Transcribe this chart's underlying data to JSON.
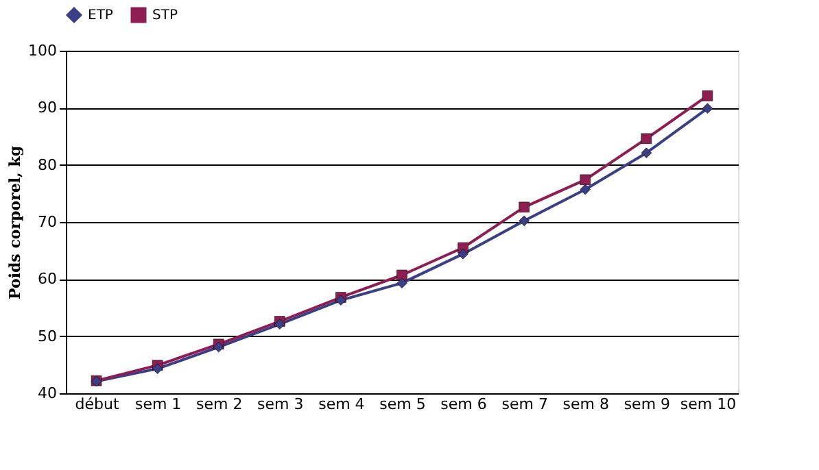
{
  "chart_data": {
    "type": "line",
    "ylabel": "Poids corporel, kg",
    "categories": [
      "début",
      "sem 1",
      "sem 2",
      "sem 3",
      "sem 4",
      "sem 5",
      "sem 6",
      "sem 7",
      "sem 8",
      "sem 9",
      "sem 10"
    ],
    "series": [
      {
        "name": "ETP",
        "color": "#3b3f85",
        "marker": "diamond",
        "values": [
          42.1,
          44.3,
          48.1,
          52.1,
          56.3,
          59.3,
          64.4,
          70.2,
          75.7,
          82.1,
          89.9
        ]
      },
      {
        "name": "STP",
        "color": "#8e1d52",
        "marker": "square",
        "values": [
          42.2,
          44.9,
          48.6,
          52.6,
          56.8,
          60.7,
          65.5,
          72.6,
          77.4,
          84.6,
          92.1
        ]
      }
    ],
    "ylim": [
      40,
      100
    ],
    "yticks": [
      40,
      50,
      60,
      70,
      80,
      90,
      100
    ],
    "grid": "y",
    "legend": "top",
    "line_style": "solid"
  }
}
